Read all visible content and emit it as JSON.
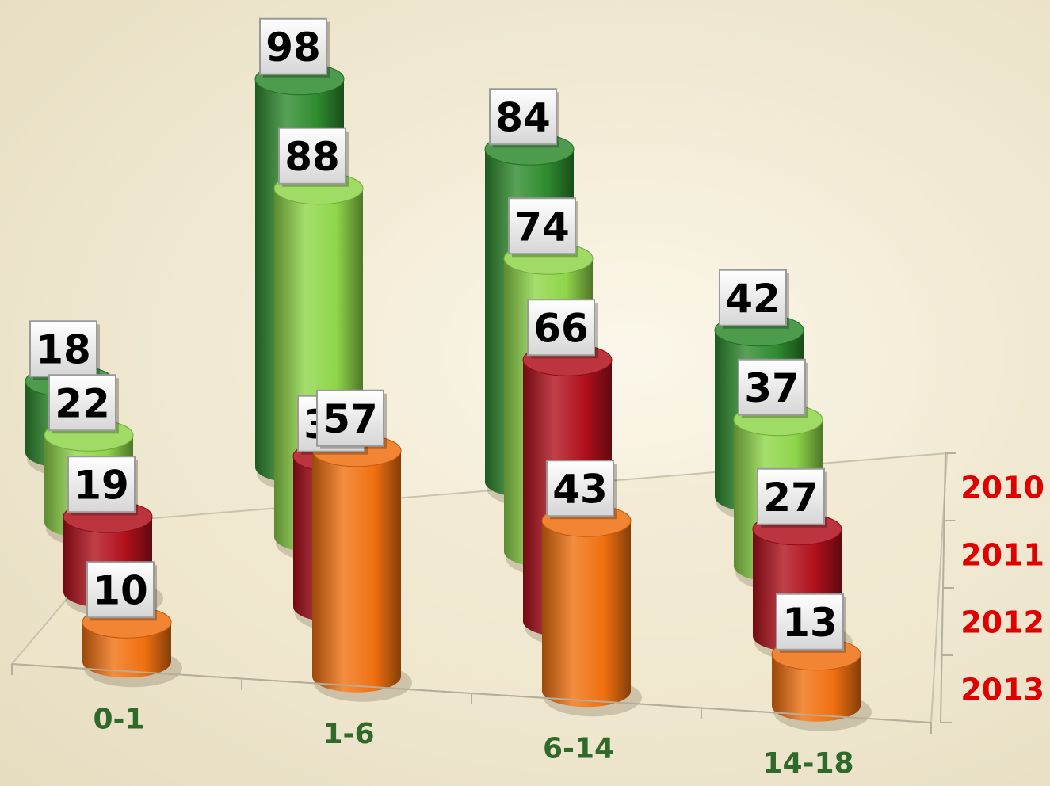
{
  "chart_data": {
    "type": "bar",
    "categories": [
      "0-1",
      "1-6",
      "6-14",
      "14-18"
    ],
    "series": [
      {
        "name": "2010",
        "values": [
          18,
          98,
          84,
          42
        ],
        "color": "#2e8b2e"
      },
      {
        "name": "2011",
        "values": [
          22,
          88,
          74,
          37
        ],
        "color": "#8fd64a"
      },
      {
        "name": "2012",
        "values": [
          19,
          38,
          66,
          27
        ],
        "color": "#b0101c"
      },
      {
        "name": "2013",
        "values": [
          10,
          57,
          43,
          13
        ],
        "color": "#f07010"
      }
    ],
    "title": "",
    "xlabel": "",
    "ylabel": "",
    "ylim": [
      0,
      100
    ],
    "grid": false,
    "legend": "none",
    "style": "3d-cylinder"
  }
}
